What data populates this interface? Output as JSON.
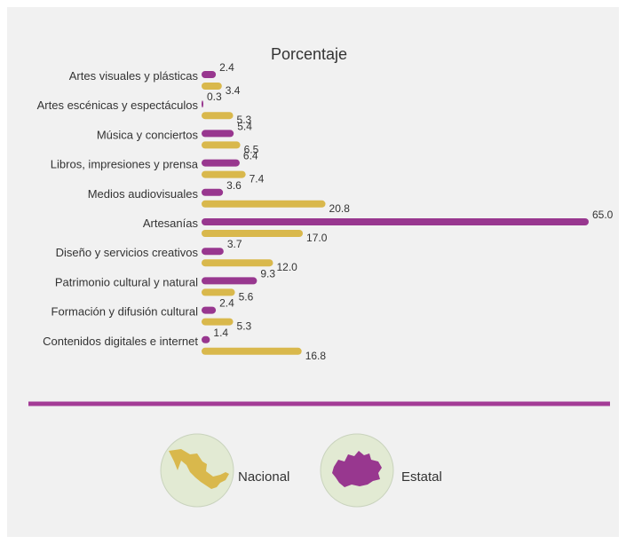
{
  "colors": {
    "estatal": "#98378f",
    "nacional": "#d9b84c",
    "divider": "#a33b96",
    "panel": "#f1f1f1",
    "legend_circle": "#e2ead3"
  },
  "chart_data": {
    "type": "bar",
    "orientation": "horizontal",
    "title": "Porcentaje",
    "categories": [
      "Artes visuales y plásticas",
      "Artes escénicas y espectáculos",
      "Música y conciertos",
      "Libros, impresiones y prensa",
      "Medios audiovisuales",
      "Artesanías",
      "Diseño y servicios creativos",
      "Patrimonio cultural y natural",
      "Formación y difusión cultural",
      "Contenidos digitales e internet"
    ],
    "series": [
      {
        "name": "Estatal",
        "color": "#98378f",
        "values": [
          2.4,
          0.3,
          5.4,
          6.4,
          3.6,
          65.0,
          3.7,
          9.3,
          2.4,
          1.4
        ],
        "labels": [
          "2.4",
          "0.3",
          "5.4",
          "6.4",
          "3.6",
          "65.0",
          "3.7",
          "9.3",
          "2.4",
          "1.4"
        ]
      },
      {
        "name": "Nacional",
        "color": "#d9b84c",
        "values": [
          3.4,
          5.3,
          6.5,
          7.4,
          20.8,
          17.0,
          12.0,
          5.6,
          5.3,
          16.8
        ],
        "labels": [
          "3.4",
          "5.3",
          "6.5",
          "7.4",
          "20.8",
          "17.0",
          "12.0",
          "5.6",
          "5.3",
          "16.8"
        ]
      }
    ],
    "xlim": [
      0,
      65
    ],
    "grid": false
  },
  "legend": {
    "items": [
      {
        "label": "Nacional",
        "icon": "mexico-map-icon",
        "color": "#d9b84c"
      },
      {
        "label": "Estatal",
        "icon": "oaxaca-map-icon",
        "color": "#98378f"
      }
    ]
  }
}
